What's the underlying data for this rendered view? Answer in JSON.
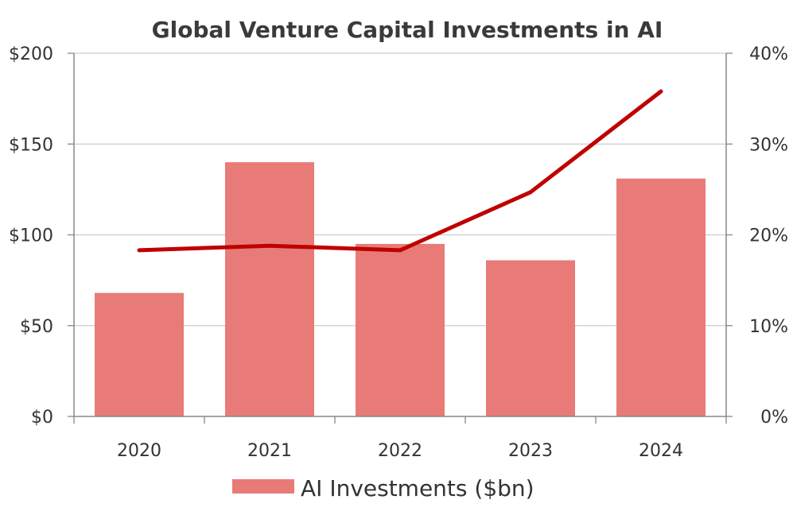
{
  "chart_data": {
    "type": "bar",
    "title": "Global Venture Capital Investments in AI",
    "categories": [
      "2020",
      "2021",
      "2022",
      "2023",
      "2024"
    ],
    "series": [
      {
        "name": "AI Investments ($bn)",
        "kind": "bar",
        "axis": "left",
        "values": [
          68,
          140,
          95,
          86,
          131
        ]
      },
      {
        "kind": "line",
        "axis": "right",
        "values": [
          18.3,
          18.8,
          18.3,
          24.7,
          35.8
        ]
      }
    ],
    "y_left": {
      "range": [
        0,
        200
      ],
      "ticks": [
        0,
        50,
        100,
        150,
        200
      ],
      "tick_labels": [
        "$0",
        "$50",
        "$100",
        "$150",
        "$200"
      ]
    },
    "y_right": {
      "range": [
        0,
        40
      ],
      "ticks": [
        0,
        10,
        20,
        30,
        40
      ],
      "tick_labels": [
        "0%",
        "10%",
        "20%",
        "30%",
        "40%"
      ]
    },
    "grid": true,
    "legend": {
      "position": "bottom",
      "entries": [
        "AI Investments ($bn)"
      ]
    },
    "colors": {
      "bar": "#e87b77",
      "line": "#c00000",
      "grid": "#cccccc",
      "axis": "#888888"
    }
  }
}
